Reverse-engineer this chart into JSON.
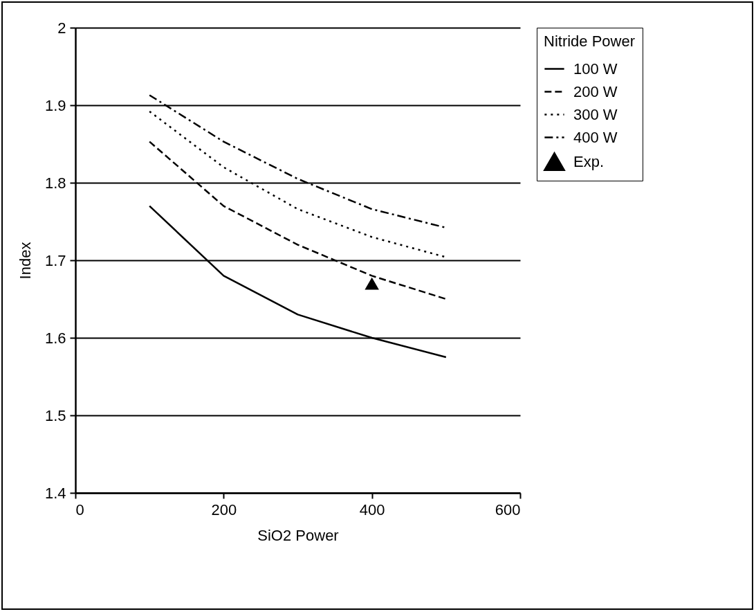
{
  "chart_data": {
    "type": "line",
    "xlabel": "SiO2 Power",
    "ylabel": "Index",
    "legend_title": "Nitride Power",
    "xlim": [
      0,
      600
    ],
    "xticks": [
      0,
      200,
      400,
      600
    ],
    "ylim": [
      1.4,
      2
    ],
    "yticks": [
      1.4,
      1.5,
      1.6,
      1.7,
      1.8,
      1.9,
      2
    ],
    "grid": "y",
    "legend": "right",
    "series": [
      {
        "name": "100 W",
        "line_style": "solid",
        "color": "#000000",
        "x": [
          100,
          200,
          300,
          400,
          500
        ],
        "values": [
          1.77,
          1.68,
          1.63,
          1.6,
          1.575
        ]
      },
      {
        "name": "200 W",
        "line_style": "dashed",
        "color": "#000000",
        "x": [
          100,
          200,
          300,
          400,
          500
        ],
        "values": [
          1.853,
          1.77,
          1.72,
          1.68,
          1.65
        ]
      },
      {
        "name": "300 W",
        "line_style": "dotted",
        "color": "#000000",
        "x": [
          100,
          200,
          300,
          400,
          500
        ],
        "values": [
          1.892,
          1.82,
          1.766,
          1.73,
          1.704
        ]
      },
      {
        "name": "400 W",
        "line_style": "dashdot",
        "color": "#000000",
        "x": [
          100,
          200,
          300,
          400,
          500
        ],
        "values": [
          1.913,
          1.853,
          1.805,
          1.766,
          1.742
        ]
      },
      {
        "name": "Exp.",
        "type": "scatter",
        "marker": "triangle",
        "color": "#000000",
        "x": [
          400
        ],
        "values": [
          1.67
        ]
      }
    ]
  }
}
